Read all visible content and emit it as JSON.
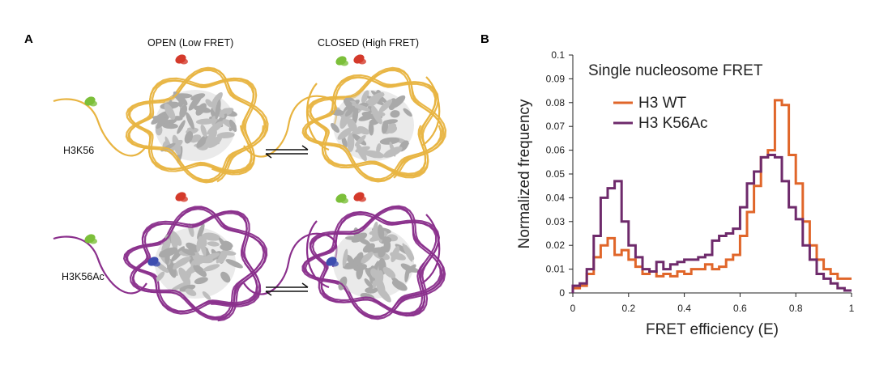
{
  "panel_a": {
    "letter": "A",
    "open_label": "OPEN (Low FRET)",
    "closed_label": "CLOSED (High FRET)",
    "row1_label": "H3K56",
    "row2_label": "H3K56Ac",
    "colors": {
      "row1_dna": "#e8b441",
      "row2_dna": "#8a2f8c",
      "histone": "#a9a9a9",
      "donor": "#7cbf3a",
      "acceptor": "#d43a2b",
      "acetyl": "#3d4db0"
    }
  },
  "panel_b": {
    "letter": "B",
    "inset_title": "Single nucleosome FRET",
    "legend": [
      {
        "name": "H3 WT",
        "color": "#e0662a"
      },
      {
        "name": "H3 K56Ac",
        "color": "#6e2a6b"
      }
    ]
  },
  "chart_data": {
    "type": "line",
    "step": true,
    "xlabel": "FRET efficiency (E)",
    "ylabel": "Normalized frequency",
    "xlim": [
      0,
      1
    ],
    "ylim": [
      0,
      0.1
    ],
    "xticks": [
      "0",
      "0.2",
      "0.4",
      "0.6",
      "0.8",
      "1"
    ],
    "yticks": [
      "0",
      "0.01",
      "0.02",
      "0.03",
      "0.04",
      "0.05",
      "0.06",
      "0.07",
      "0.08",
      "0.09",
      "0.1"
    ],
    "grid": false,
    "legend_position": "top-left",
    "bin_edges": [
      0.0,
      0.025,
      0.05,
      0.075,
      0.1,
      0.125,
      0.15,
      0.175,
      0.2,
      0.225,
      0.25,
      0.275,
      0.3,
      0.325,
      0.35,
      0.375,
      0.4,
      0.425,
      0.45,
      0.475,
      0.5,
      0.525,
      0.55,
      0.575,
      0.6,
      0.625,
      0.65,
      0.675,
      0.7,
      0.725,
      0.75,
      0.775,
      0.8,
      0.825,
      0.85,
      0.875,
      0.9,
      0.925,
      0.95,
      0.975,
      1.0
    ],
    "series": [
      {
        "name": "H3 WT",
        "color": "#e0662a",
        "values": [
          0.002,
          0.003,
          0.008,
          0.015,
          0.02,
          0.023,
          0.016,
          0.018,
          0.014,
          0.011,
          0.008,
          0.009,
          0.007,
          0.008,
          0.007,
          0.009,
          0.008,
          0.01,
          0.01,
          0.012,
          0.01,
          0.011,
          0.014,
          0.016,
          0.024,
          0.034,
          0.045,
          0.057,
          0.06,
          0.081,
          0.079,
          0.058,
          0.046,
          0.03,
          0.02,
          0.014,
          0.01,
          0.008,
          0.006,
          0.006
        ]
      },
      {
        "name": "H3 K56Ac",
        "color": "#6e2a6b",
        "values": [
          0.003,
          0.004,
          0.01,
          0.024,
          0.04,
          0.044,
          0.047,
          0.03,
          0.02,
          0.015,
          0.01,
          0.009,
          0.013,
          0.01,
          0.012,
          0.013,
          0.014,
          0.014,
          0.015,
          0.016,
          0.022,
          0.024,
          0.025,
          0.027,
          0.036,
          0.046,
          0.051,
          0.057,
          0.058,
          0.057,
          0.047,
          0.036,
          0.031,
          0.02,
          0.014,
          0.008,
          0.006,
          0.004,
          0.002,
          0.001
        ]
      }
    ]
  }
}
